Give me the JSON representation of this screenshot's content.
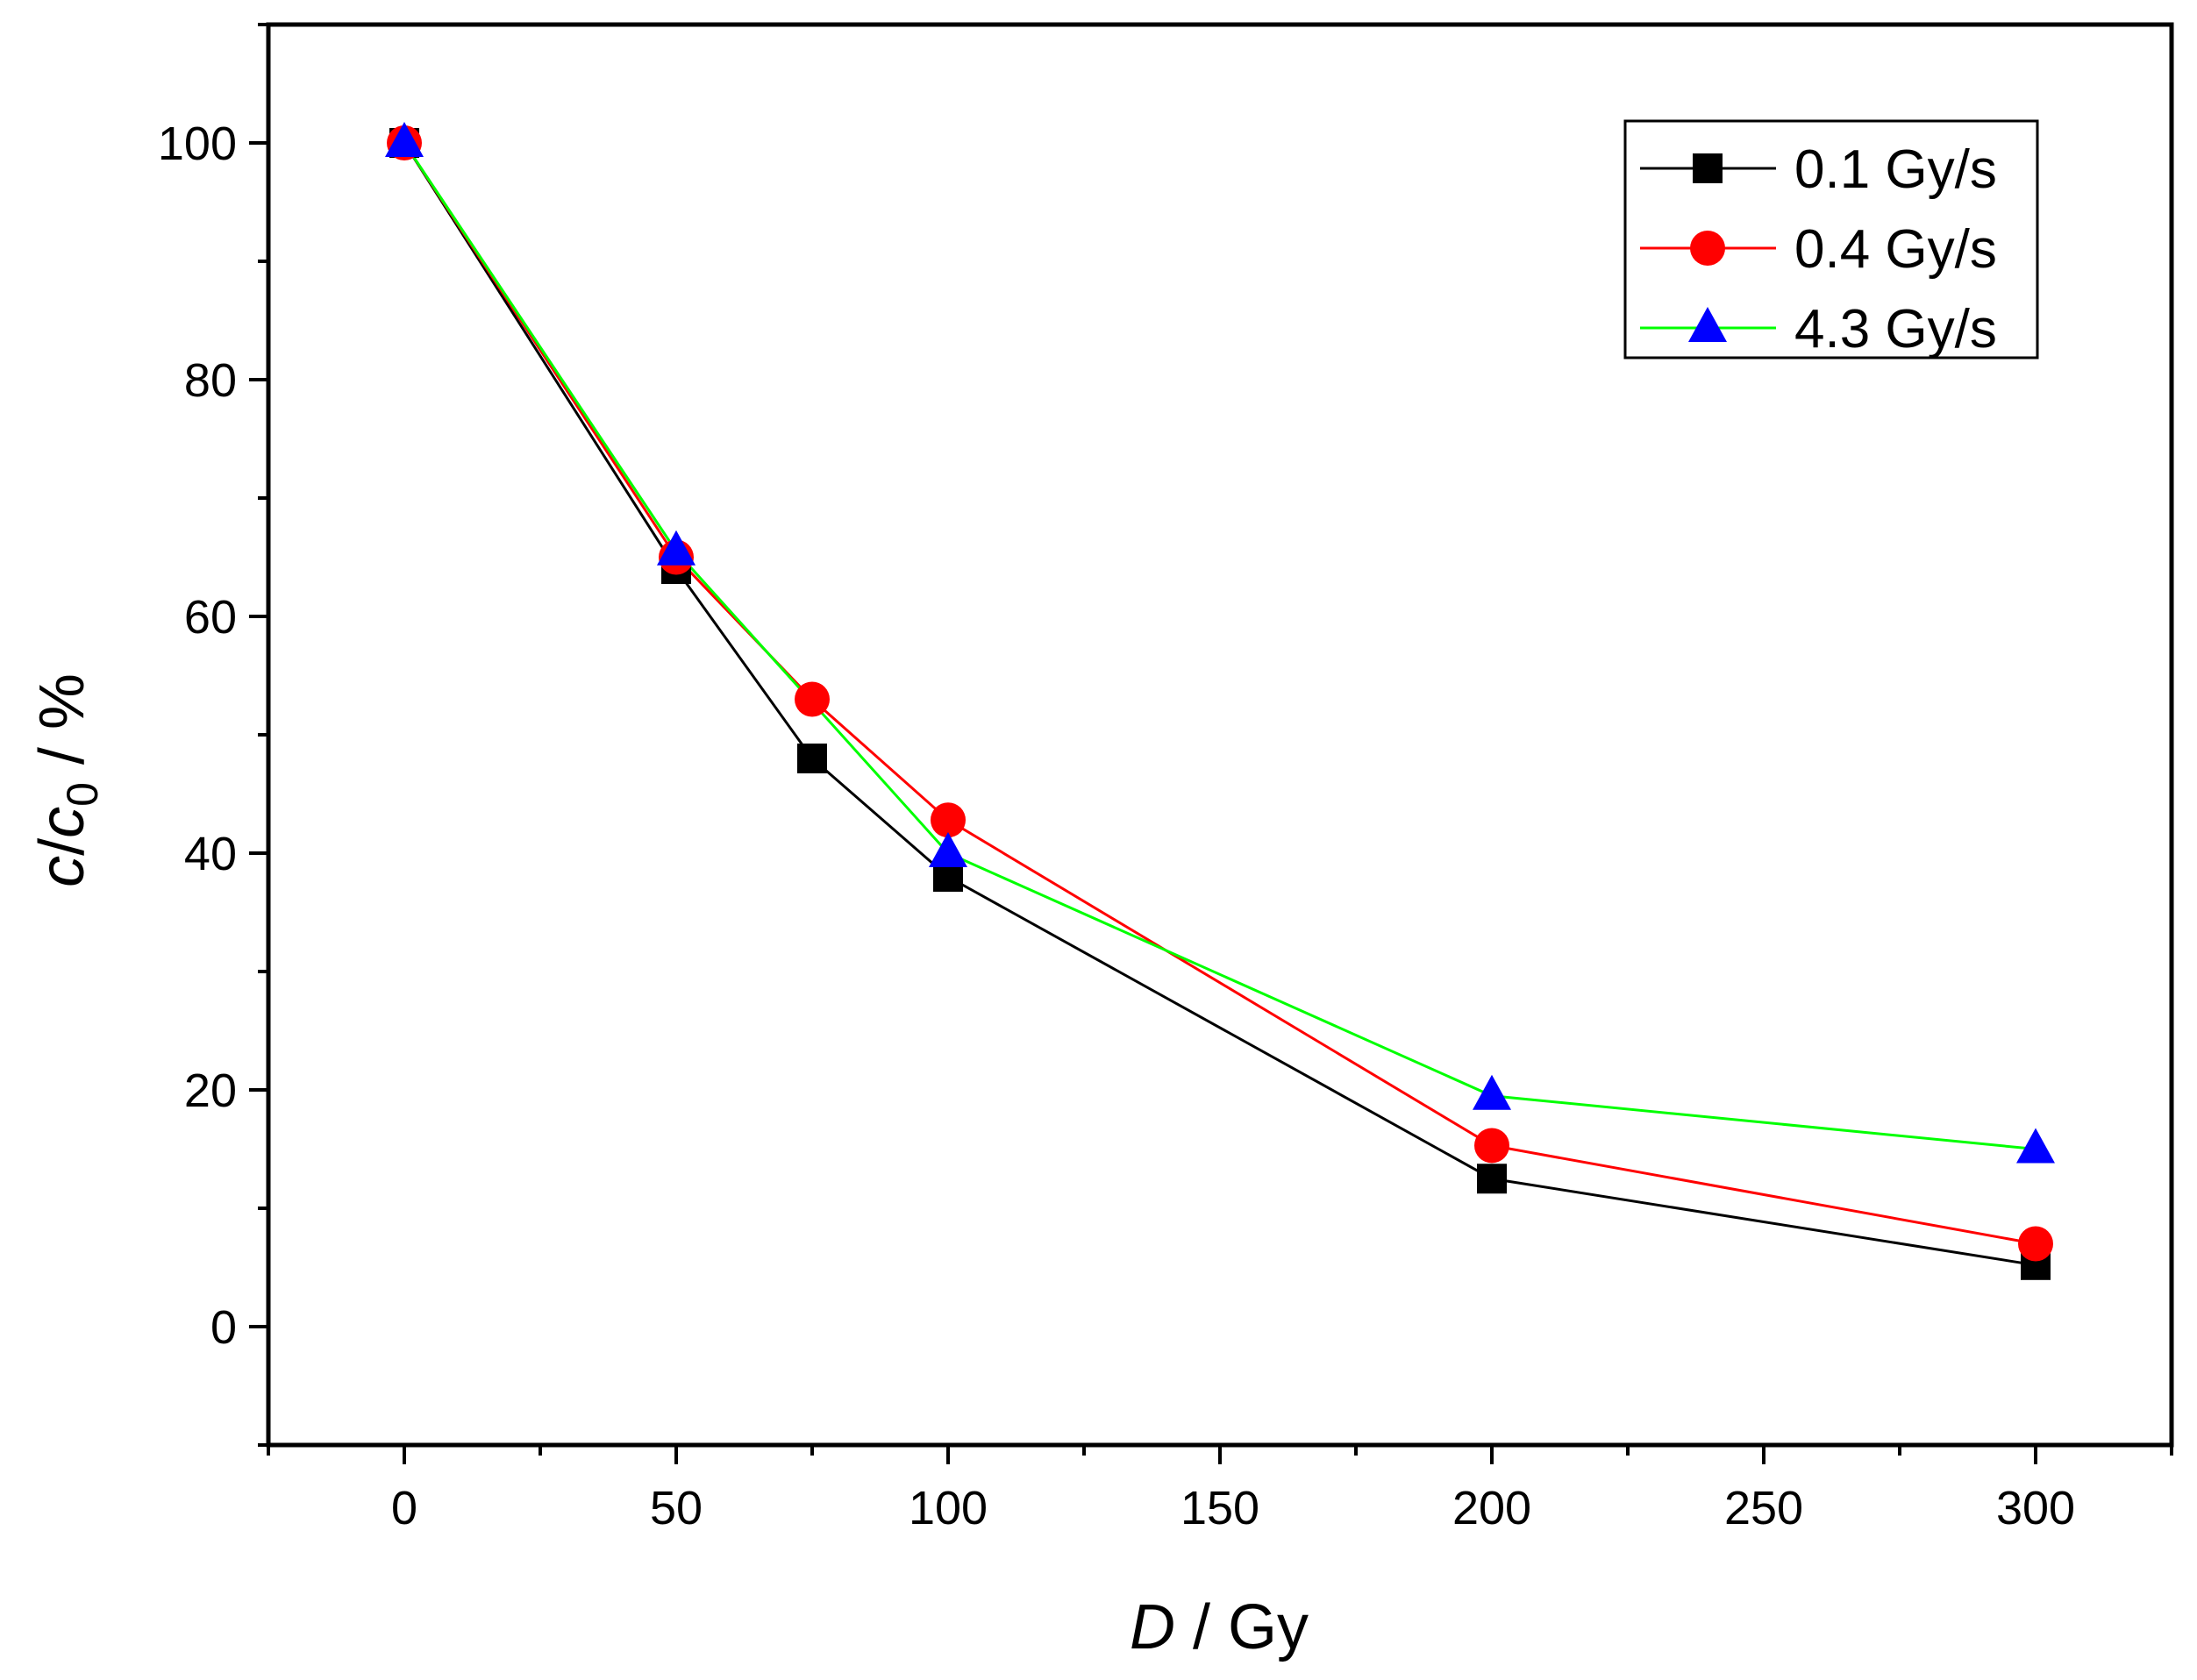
{
  "chart_data": {
    "type": "line",
    "title": "",
    "x": [
      0,
      50,
      75,
      100,
      200,
      300
    ],
    "xlim": [
      -25,
      325
    ],
    "ylim": [
      -10,
      110
    ],
    "x_ticks": [
      0,
      50,
      100,
      150,
      200,
      250,
      300
    ],
    "y_ticks": [
      0,
      20,
      40,
      60,
      80,
      100
    ],
    "xlabel": {
      "italic": "D",
      "rest": " / Gy"
    },
    "ylabel": {
      "c1": "c",
      "slash": "/",
      "c2": "c",
      "sub": "0",
      "rest": "  / %"
    },
    "grid": false,
    "legend_position": "top-right",
    "series": [
      {
        "name": "0.1 Gy/s",
        "marker": "square",
        "line_color": "#000000",
        "marker_color": "#000000",
        "x": [
          0,
          50,
          75,
          100,
          200,
          300
        ],
        "values": [
          100,
          64,
          48,
          38,
          12.5,
          5.2
        ]
      },
      {
        "name": "0.4 Gy/s",
        "marker": "circle",
        "line_color": "#ff0000",
        "marker_color": "#ff0000",
        "x": [
          0,
          50,
          75,
          100,
          200,
          300
        ],
        "values": [
          100,
          65,
          53,
          42.8,
          15.3,
          7
        ]
      },
      {
        "name": "4.3 Gy/s",
        "marker": "triangle",
        "line_color": "#00ff00",
        "marker_color": "#0000ff",
        "x": [
          0,
          50,
          100,
          200,
          300
        ],
        "values": [
          100,
          65.5,
          40,
          19.5,
          15
        ]
      }
    ]
  }
}
